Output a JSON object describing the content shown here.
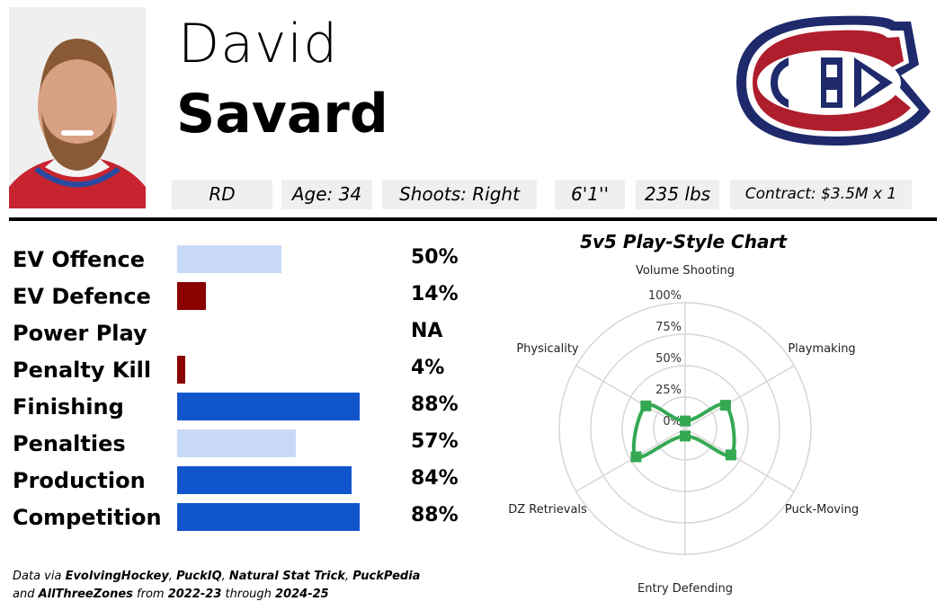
{
  "player": {
    "first_name": "David",
    "last_name": "Savard",
    "team_logo": "montreal-canadiens-logo"
  },
  "chips": [
    "RD",
    "Age: 34",
    "Shoots: Right",
    "6'1''",
    "235 lbs",
    "Contract: $3.5M x 1"
  ],
  "stats": [
    {
      "label": "EV Offence",
      "value": "50%",
      "pct": 50,
      "color": "#c9daf8"
    },
    {
      "label": "EV Defence",
      "value": "14%",
      "pct": 14,
      "color": "#8b0000"
    },
    {
      "label": "Power Play",
      "value": "NA",
      "pct": 0,
      "color": "#ffffff"
    },
    {
      "label": "Penalty Kill",
      "value": "4%",
      "pct": 4,
      "color": "#8b0000"
    },
    {
      "label": "Finishing",
      "value": "88%",
      "pct": 88,
      "color": "#1155cc"
    },
    {
      "label": "Penalties",
      "value": "57%",
      "pct": 57,
      "color": "#c9daf8"
    },
    {
      "label": "Production",
      "value": "84%",
      "pct": 84,
      "color": "#1155cc"
    },
    {
      "label": "Competition",
      "value": "88%",
      "pct": 88,
      "color": "#1155cc"
    }
  ],
  "footer": {
    "p1": "Data via ",
    "s1": "EvolvingHockey",
    ",": ", ",
    "s2": "PuckIQ",
    "s3": "Natural Stat Trick",
    "s4": "PuckPedia",
    "and": "and ",
    "s5": "AllThreeZones",
    "from": " from ",
    "s6": "2022-23",
    "through": " through ",
    "s7": "2024-25"
  },
  "chart_data": {
    "type": "radar",
    "title": "5v5 Play-Style Chart",
    "categories": [
      "Volume Shooting",
      "Playmaking",
      "Puck-Moving",
      "Entry Defending",
      "DZ Retrievals",
      "Physicality"
    ],
    "values": [
      6,
      37,
      42,
      6,
      45,
      36
    ],
    "ticks": [
      "0%",
      "25%",
      "50%",
      "75%",
      "100%"
    ],
    "range": [
      0,
      100
    ],
    "color": "#34a853",
    "grid": true
  }
}
